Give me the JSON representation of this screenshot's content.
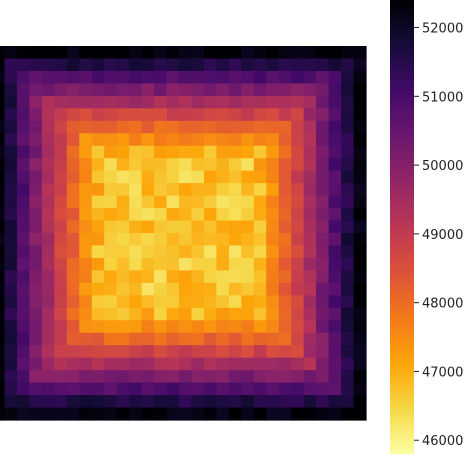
{
  "chart_data": {
    "type": "heatmap",
    "title": "",
    "xlabel": "",
    "ylabel": "",
    "colormap": "inferno_r",
    "grid": false,
    "rows": 30,
    "cols": 30,
    "value_model": {
      "center_value": 46700,
      "edge_value": 52300,
      "noise_amplitude": 450
    },
    "colorbar": {
      "vmin": 45800,
      "vmax": 52400,
      "ticks": [
        46000,
        47000,
        48000,
        49000,
        50000,
        51000,
        52000
      ],
      "tick_labels": [
        "46000",
        "47000",
        "48000",
        "49000",
        "50000",
        "51000",
        "52000"
      ]
    }
  }
}
